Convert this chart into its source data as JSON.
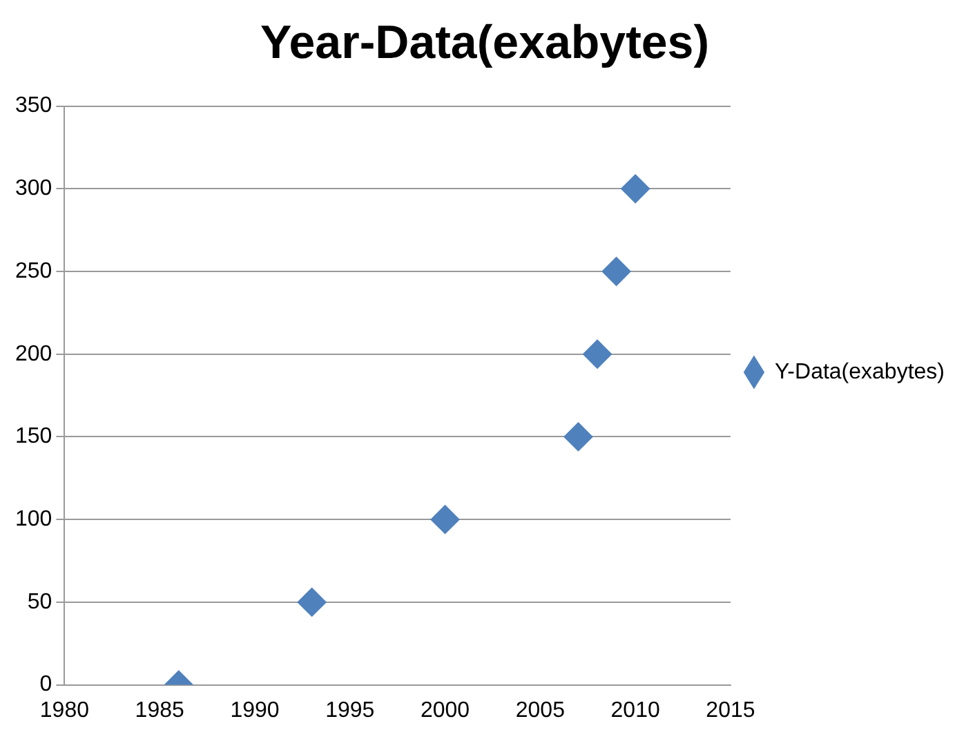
{
  "chart_data": {
    "type": "scatter",
    "title": "Year-Data(exabytes)",
    "x": [
      1986,
      1993,
      2000,
      2007,
      2008,
      2009,
      2010
    ],
    "series": [
      {
        "name": "Y-Data(exabytes)",
        "color": "#4f81bd",
        "values": [
          0,
          50,
          100,
          150,
          200,
          250,
          300
        ]
      }
    ],
    "xlim": [
      1980,
      2015
    ],
    "xticks": [
      1980,
      1985,
      1990,
      1995,
      2000,
      2005,
      2010,
      2015
    ],
    "ylim": [
      0,
      350
    ],
    "yticks": [
      0,
      50,
      100,
      150,
      200,
      250,
      300,
      350
    ],
    "grid": "y",
    "legend": "right",
    "marker": "diamond"
  }
}
